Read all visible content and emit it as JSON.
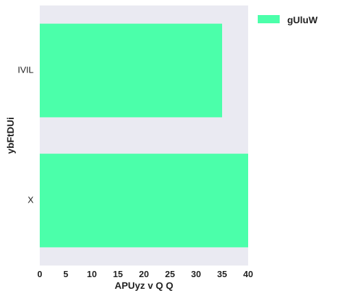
{
  "chart_data": {
    "type": "bar",
    "orientation": "horizontal",
    "categories": [
      "IVIL",
      "X"
    ],
    "series": [
      {
        "name": "gUluW",
        "values": [
          35,
          40
        ],
        "color": "#4bffaa"
      }
    ],
    "xlabel": "APUyz v Q Q",
    "ylabel": "ybFtDUi",
    "xlim": [
      0,
      40
    ],
    "xticks": [
      0,
      5,
      10,
      15,
      20,
      25,
      30,
      35,
      40
    ],
    "grid": false,
    "background": "#eaeaf2",
    "legend": "top-right"
  }
}
